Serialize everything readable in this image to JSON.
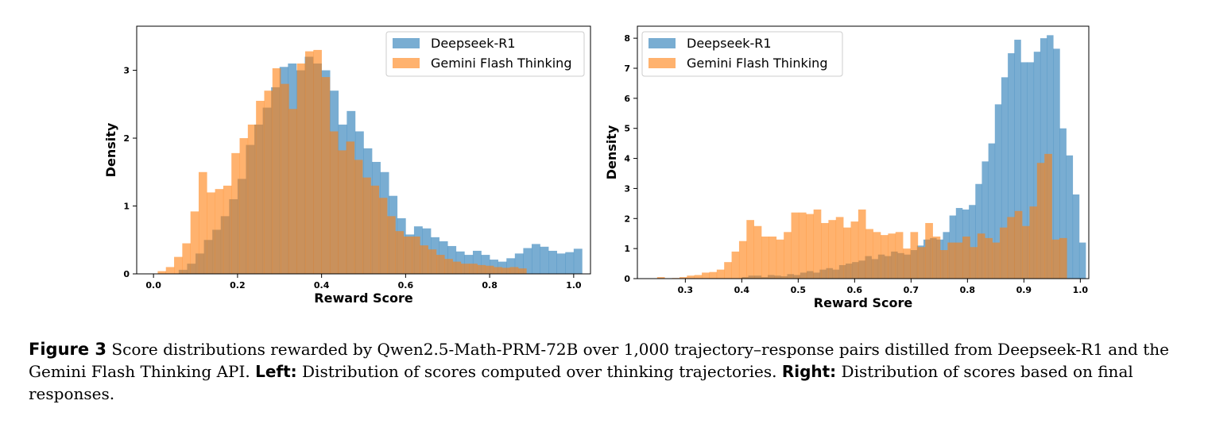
{
  "chart_data": [
    {
      "type": "histogram",
      "xlabel": "Reward Score",
      "ylabel": "Density",
      "xlim": [
        -0.04,
        1.04
      ],
      "ylim": [
        0,
        3.65
      ],
      "xticks": [
        "0.0",
        "0.2",
        "0.4",
        "0.6",
        "0.8",
        "1.0"
      ],
      "xtick_values": [
        0,
        0.2,
        0.4,
        0.6,
        0.8,
        1.0
      ],
      "yticks": [
        "0",
        "1",
        "2",
        "3"
      ],
      "ytick_values": [
        0,
        1,
        2,
        3
      ],
      "legend_position": "top-right",
      "series": [
        {
          "name": "Deepseek-R1",
          "color": "#1f77b4",
          "x_start": 0.02,
          "bin_width": 0.02,
          "values": [
            0,
            0,
            0.06,
            0.15,
            0.3,
            0.5,
            0.65,
            0.85,
            1.1,
            1.4,
            1.9,
            2.2,
            2.45,
            2.75,
            3.05,
            3.1,
            3.0,
            3.2,
            3.1,
            3.0,
            2.7,
            2.2,
            2.4,
            2.1,
            1.85,
            1.65,
            1.5,
            1.15,
            0.82,
            0.58,
            0.7,
            0.67,
            0.54,
            0.48,
            0.41,
            0.33,
            0.28,
            0.34,
            0.28,
            0.21,
            0.18,
            0.23,
            0.3,
            0.38,
            0.44,
            0.4,
            0.34,
            0.3,
            0.32,
            0.37
          ]
        },
        {
          "name": "Gemini Flash Thinking",
          "color": "#ff7f0e",
          "x_start": 0.01,
          "bin_width": 0.0195,
          "values": [
            0.04,
            0.1,
            0.25,
            0.45,
            0.92,
            1.5,
            1.2,
            1.25,
            1.3,
            1.78,
            2.0,
            2.2,
            2.55,
            2.7,
            3.03,
            2.8,
            2.43,
            3.1,
            3.28,
            3.3,
            2.9,
            2.1,
            1.82,
            1.95,
            1.68,
            1.42,
            1.3,
            1.12,
            0.85,
            0.63,
            0.55,
            0.55,
            0.42,
            0.36,
            0.28,
            0.22,
            0.18,
            0.15,
            0.15,
            0.13,
            0.12,
            0.1,
            0.09,
            0.1,
            0.08
          ]
        }
      ]
    },
    {
      "type": "histogram",
      "xlabel": "Reward Score",
      "ylabel": "Density",
      "xlim": [
        0.215,
        1.015
      ],
      "ylim": [
        0,
        8.4
      ],
      "xticks": [
        "0.3",
        "0.4",
        "0.5",
        "0.6",
        "0.7",
        "0.8",
        "0.9",
        "1.0"
      ],
      "xtick_values": [
        0.3,
        0.4,
        0.5,
        0.6,
        0.7,
        0.8,
        0.9,
        1.0
      ],
      "yticks": [
        "0",
        "1",
        "2",
        "3",
        "4",
        "5",
        "6",
        "7",
        "8"
      ],
      "ytick_values": [
        0,
        1,
        2,
        3,
        4,
        5,
        6,
        7,
        8
      ],
      "legend_position": "top-left",
      "series": [
        {
          "name": "Deepseek-R1",
          "color": "#1f77b4",
          "x_start": 0.4,
          "bin_width": 0.0115,
          "values": [
            0.05,
            0.1,
            0.1,
            0.05,
            0.12,
            0.1,
            0.08,
            0.15,
            0.12,
            0.2,
            0.25,
            0.2,
            0.3,
            0.35,
            0.3,
            0.45,
            0.5,
            0.55,
            0.6,
            0.75,
            0.65,
            0.8,
            0.75,
            0.9,
            0.85,
            0.8,
            0.95,
            1.1,
            1.3,
            1.35,
            1.3,
            1.55,
            2.1,
            2.35,
            2.3,
            2.45,
            3.15,
            3.9,
            4.5,
            5.8,
            6.7,
            7.5,
            7.95,
            7.2,
            7.2,
            7.55,
            8.0,
            8.1,
            7.65,
            5.0,
            4.1,
            2.8,
            1.2
          ]
        },
        {
          "name": "Gemini Flash Thinking",
          "color": "#ff7f0e",
          "x_start": 0.25,
          "bin_width": 0.0132,
          "values": [
            0.05,
            0,
            0.02,
            0.05,
            0.1,
            0.12,
            0.2,
            0.22,
            0.3,
            0.55,
            0.9,
            1.25,
            1.95,
            1.75,
            1.4,
            1.4,
            1.3,
            1.55,
            2.2,
            2.2,
            2.15,
            2.3,
            1.85,
            1.95,
            2.05,
            1.7,
            1.9,
            2.3,
            1.65,
            1.55,
            1.45,
            1.5,
            1.55,
            1.0,
            1.55,
            1.05,
            1.85,
            1.4,
            0.95,
            1.2,
            1.2,
            1.4,
            1.05,
            1.5,
            1.35,
            1.2,
            1.7,
            2.05,
            2.25,
            1.75,
            2.4,
            3.85,
            4.15,
            1.3,
            1.35
          ]
        }
      ]
    }
  ],
  "caption": {
    "fig_label": "Figure 3",
    "text1": " Score distributions rewarded by Qwen2.5-Math-PRM-72B over 1,000 trajectory–response pairs distilled from Deepseek-R1 and the Gemini Flash Thinking API. ",
    "left_label": "Left:",
    "text2": " Distribution of scores computed over thinking trajectories. ",
    "right_label": "Right:",
    "text3": " Distribution of scores based on final responses."
  }
}
